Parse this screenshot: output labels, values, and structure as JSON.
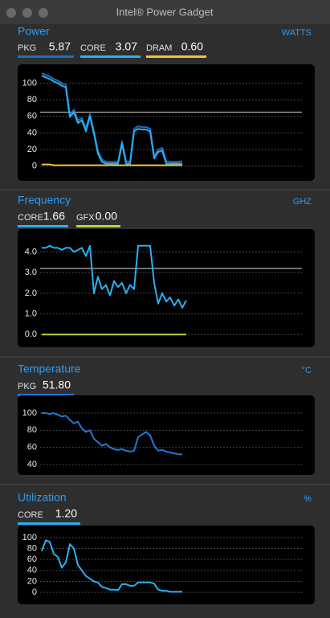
{
  "window": {
    "title": "Intel® Power Gadget"
  },
  "panels": [
    {
      "title": "Power",
      "unit": "WATTS",
      "ylim": [
        -10,
        115
      ],
      "yticks": [
        0,
        20,
        40,
        60,
        80,
        100
      ],
      "reference": 65,
      "series": [
        {
          "name": "PKG",
          "reading": "5.87",
          "color": "#1e6fbf",
          "values": [
            112,
            110,
            108,
            105,
            103,
            100,
            98,
            62,
            68,
            55,
            58,
            45,
            63,
            42,
            18,
            8,
            5,
            5,
            5,
            5,
            30,
            6,
            5,
            45,
            48,
            47,
            47,
            45,
            12,
            20,
            22,
            6,
            5,
            5,
            5,
            6
          ]
        },
        {
          "name": "CORE",
          "reading": "3.07",
          "color": "#29b0f0",
          "values": [
            109,
            107,
            105,
            102,
            100,
            97,
            95,
            59,
            65,
            52,
            55,
            42,
            60,
            39,
            15,
            5,
            3,
            3,
            3,
            3,
            27,
            3,
            3,
            42,
            45,
            44,
            44,
            42,
            9,
            17,
            19,
            3,
            3,
            3,
            3,
            3
          ]
        },
        {
          "name": "DRAM",
          "reading": "0.60",
          "color": "#f2c230",
          "values": [
            2,
            2,
            2,
            1,
            1,
            1,
            1,
            1,
            1,
            1,
            1,
            1,
            1,
            1,
            1,
            1,
            1,
            1,
            1,
            1,
            1,
            1,
            1,
            1,
            1,
            1,
            1,
            1,
            1,
            1,
            1,
            1,
            1,
            1,
            1,
            1
          ]
        }
      ]
    },
    {
      "title": "Frequency",
      "unit": "GHZ",
      "ylim": [
        -0.3,
        4.8
      ],
      "yticks": [
        {
          "value": 0,
          "label": "0.0"
        },
        {
          "value": 1,
          "label": "1.0"
        },
        {
          "value": 2,
          "label": "2.0"
        },
        {
          "value": 3,
          "label": "3.0"
        },
        {
          "value": 4,
          "label": "4.0"
        }
      ],
      "reference": 3.2,
      "series": [
        {
          "name": "CORE",
          "reading": "1.66",
          "color": "#29b0f0",
          "values": [
            4.2,
            4.2,
            4.3,
            4.2,
            4.2,
            4.1,
            4.2,
            4.2,
            4.0,
            4.1,
            4.2,
            3.8,
            4.3,
            2.0,
            2.8,
            2.2,
            2.4,
            1.9,
            2.6,
            2.3,
            2.5,
            2.0,
            2.4,
            2.2,
            4.3,
            4.3,
            4.3,
            4.3,
            2.5,
            1.5,
            2.0,
            1.6,
            1.8,
            1.4,
            1.7,
            1.3,
            1.66
          ]
        },
        {
          "name": "GFX",
          "reading": "0.00",
          "color": "#b7d43c",
          "values": [
            0,
            0,
            0,
            0,
            0,
            0,
            0,
            0,
            0,
            0,
            0,
            0,
            0,
            0,
            0,
            0,
            0,
            0,
            0,
            0,
            0,
            0,
            0,
            0,
            0,
            0,
            0,
            0,
            0,
            0,
            0,
            0,
            0,
            0,
            0,
            0,
            0
          ]
        }
      ]
    },
    {
      "title": "Temperature",
      "unit": "°C",
      "ylim": [
        32.5,
        115
      ],
      "yticks": [
        40,
        60,
        80,
        100
      ],
      "series": [
        {
          "name": "PKG",
          "reading": "51.80",
          "color": "#1e78d6",
          "values": [
            100,
            100,
            99,
            100,
            98,
            96,
            97,
            92,
            88,
            90,
            82,
            78,
            80,
            70,
            66,
            62,
            64,
            60,
            58,
            57,
            58,
            56,
            55,
            56,
            72,
            75,
            78,
            74,
            62,
            56,
            57,
            55,
            54,
            53,
            52,
            51.8
          ]
        }
      ]
    },
    {
      "title": "Utilization",
      "unit": "%",
      "ylim": [
        -13,
        113
      ],
      "yticks": [
        0,
        20,
        40,
        60,
        80,
        100
      ],
      "series": [
        {
          "name": "CORE",
          "reading": "1.20",
          "color": "#29b0f0",
          "values": [
            75,
            95,
            92,
            70,
            65,
            45,
            55,
            88,
            80,
            50,
            40,
            30,
            25,
            20,
            18,
            10,
            8,
            5,
            5,
            4,
            15,
            15,
            12,
            12,
            18,
            18,
            18,
            18,
            16,
            5,
            3,
            3,
            1,
            1,
            1,
            1.2
          ]
        }
      ]
    }
  ]
}
